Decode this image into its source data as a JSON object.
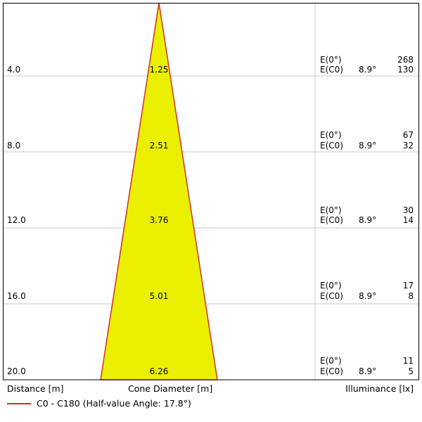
{
  "colors": {
    "cone_fill": "#eaf000",
    "cone_stroke": "#d0302a",
    "grid": "#c8c8c8",
    "frame": "#000000"
  },
  "rows": [
    {
      "distance": "4.0",
      "diameter": "1.25",
      "e0_label": "E(0°)",
      "e0_value": "268",
      "ec0_label": "E(C0)",
      "angle": "8.9°",
      "ec0_value": "130"
    },
    {
      "distance": "8.0",
      "diameter": "2.51",
      "e0_label": "E(0°)",
      "e0_value": "67",
      "ec0_label": "E(C0)",
      "angle": "8.9°",
      "ec0_value": "32"
    },
    {
      "distance": "12.0",
      "diameter": "3.76",
      "e0_label": "E(0°)",
      "e0_value": "30",
      "ec0_label": "E(C0)",
      "angle": "8.9°",
      "ec0_value": "14"
    },
    {
      "distance": "16.0",
      "diameter": "5.01",
      "e0_label": "E(0°)",
      "e0_value": "17",
      "ec0_label": "E(C0)",
      "angle": "8.9°",
      "ec0_value": "8"
    },
    {
      "distance": "20.0",
      "diameter": "6.26",
      "e0_label": "E(0°)",
      "e0_value": "11",
      "ec0_label": "E(C0)",
      "angle": "8.9°",
      "ec0_value": "5"
    }
  ],
  "labels": {
    "distance": "Distance [m]",
    "cone_diameter": "Cone Diameter [m]",
    "illuminance": "Illuminance [lx]"
  },
  "legend": {
    "text": "C0 - C180 (Half-value Angle: 17.8°)"
  }
}
